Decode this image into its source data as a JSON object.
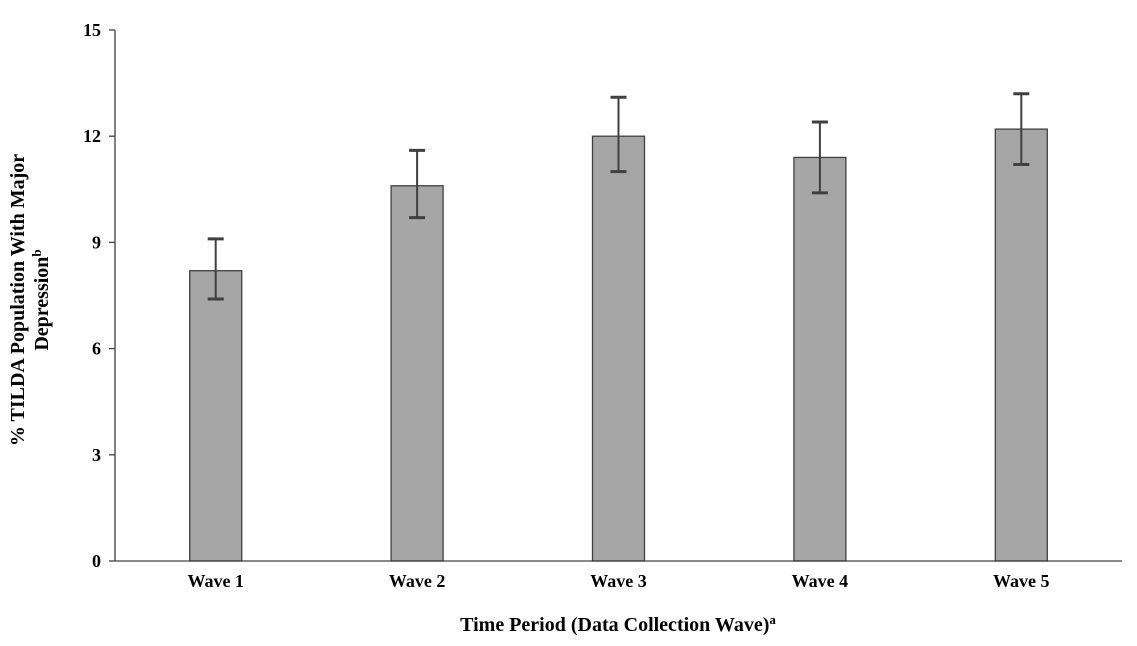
{
  "chart_data": {
    "type": "bar",
    "categories": [
      "Wave 1",
      "Wave 2",
      "Wave 3",
      "Wave 4",
      "Wave 5"
    ],
    "values": [
      8.2,
      10.6,
      12.0,
      11.4,
      12.2
    ],
    "error_upper": [
      9.1,
      11.6,
      13.1,
      12.4,
      13.2
    ],
    "error_lower": [
      7.4,
      9.7,
      11.0,
      10.4,
      11.2
    ],
    "xlabel": "Time Period (Data Collection Wave)",
    "xlabel_sup": "a",
    "ylabel_line1": "% TILDA Population With Major",
    "ylabel_line2": "Depression",
    "ylabel_sup": "b",
    "ylim": [
      0,
      15
    ],
    "yticks": [
      "0",
      "3",
      "6",
      "9",
      "12",
      "15"
    ],
    "grid": false,
    "bar_color": "#a6a6a6",
    "bar_edge_color": "#404040",
    "error_bar_color": "#404040"
  }
}
